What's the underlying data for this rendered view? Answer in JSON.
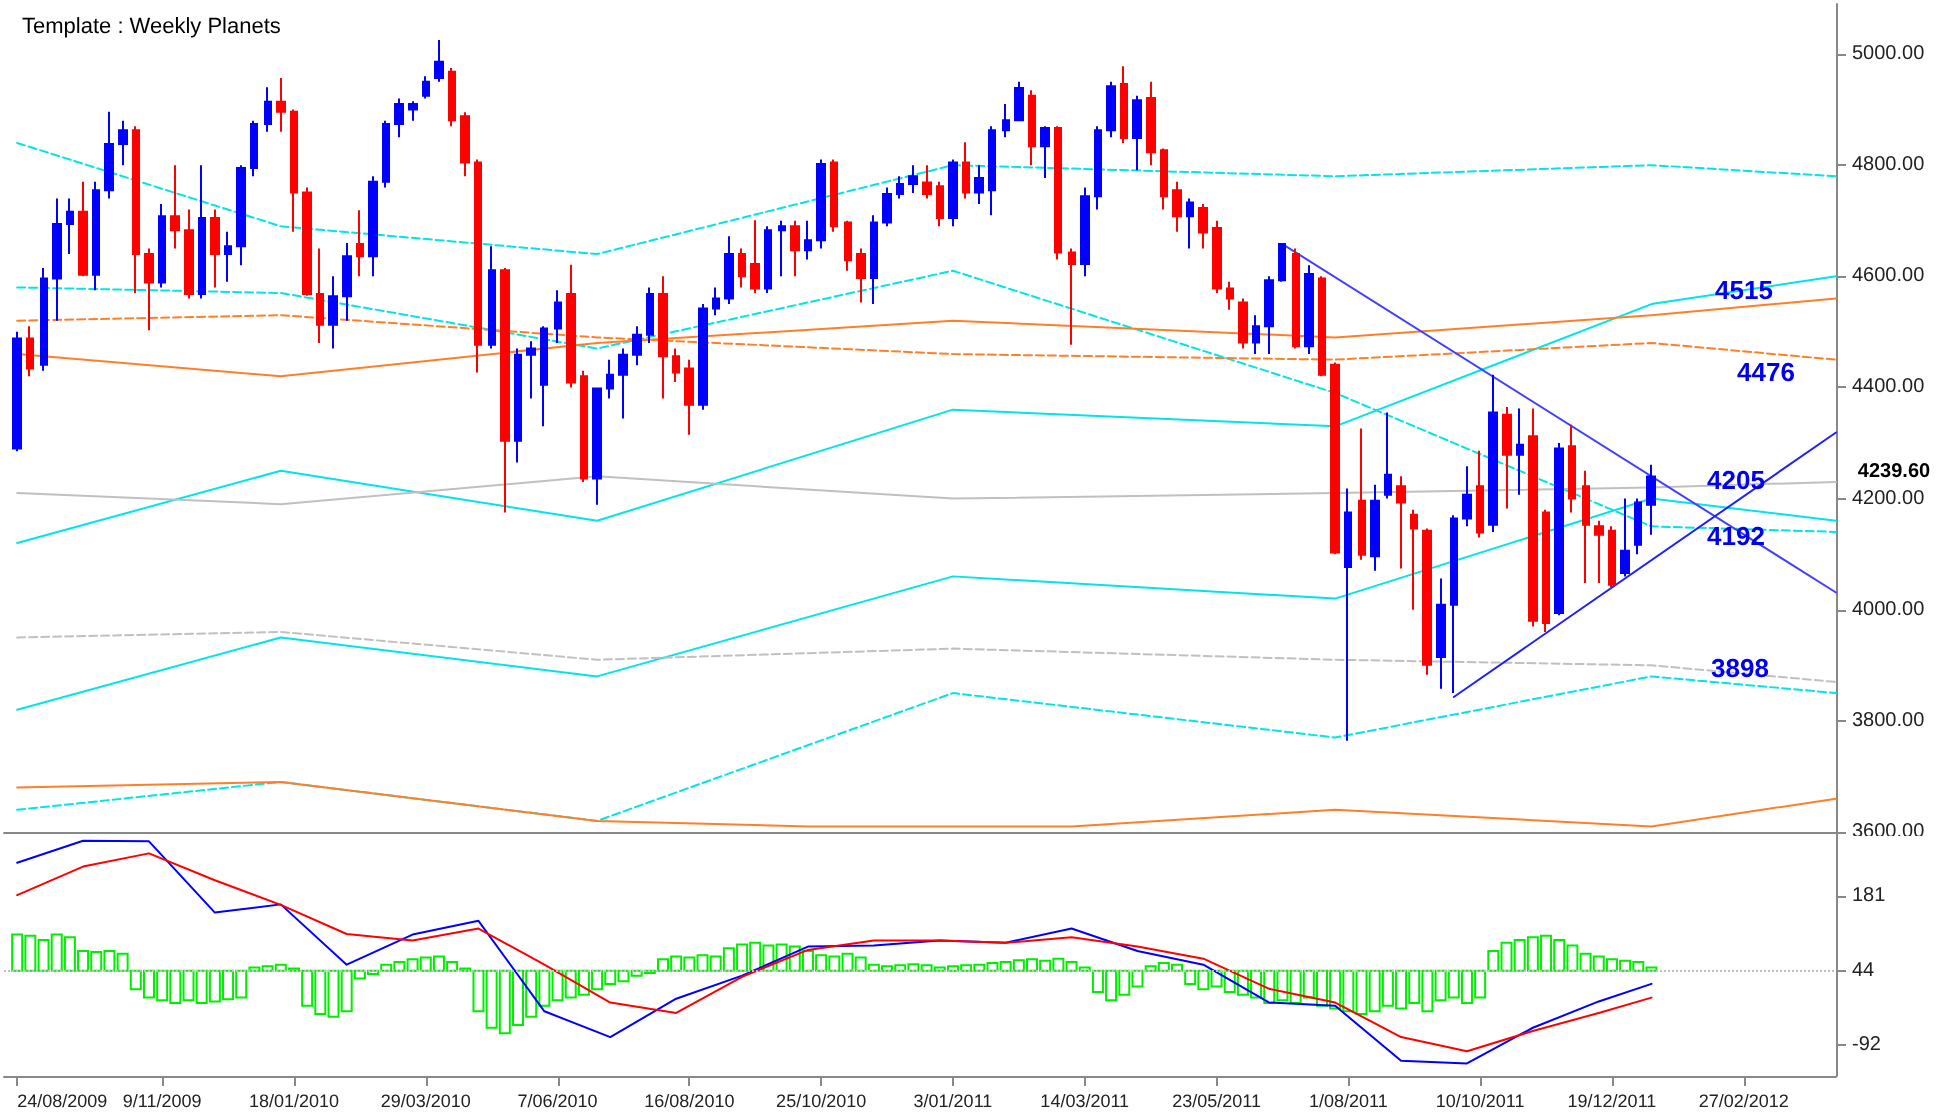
{
  "chart_data": [
    {
      "type": "candlestick",
      "title": "Template : Weekly Planets",
      "colors": [
        "#0000ff",
        "#ff0000",
        "#0000ff",
        "#0000ff",
        "#0000ff",
        "#ff0000",
        "#0000ff",
        "#0000ff",
        "#0000ff",
        "#ff0000",
        "#ff0000",
        "#0000ff",
        "#ff0000",
        "#ff0000",
        "#0000ff",
        "#ff0000",
        "#0000ff",
        "#0000ff",
        "#0000ff",
        "#0000ff",
        "#ff0000",
        "#ff0000",
        "#ff0000",
        "#ff0000",
        "#0000ff",
        "#0000ff",
        "#ff0000",
        "#0000ff",
        "#0000ff",
        "#0000ff",
        "#0000ff",
        "#0000ff",
        "#0000ff",
        "#ff0000",
        "#ff0000",
        "#ff0000",
        "#0000ff",
        "#ff0000",
        "#0000ff",
        "#0000ff",
        "#0000ff",
        "#0000ff",
        "#ff0000",
        "#ff0000",
        "#0000ff",
        "#0000ff",
        "#0000ff",
        "#0000ff",
        "#0000ff",
        "#ff0000",
        "#ff0000",
        "#ff0000",
        "#0000ff",
        "#0000ff",
        "#0000ff",
        "#ff0000",
        "#ff0000",
        "#0000ff",
        "#0000ff",
        "#ff0000",
        "#0000ff",
        "#0000ff",
        "#ff0000",
        "#ff0000",
        "#ff0000",
        "#0000ff",
        "#0000ff",
        "#0000ff",
        "#0000ff",
        "#ff0000",
        "#ff0000",
        "#0000ff",
        "#ff0000",
        "#0000ff",
        "#0000ff",
        "#0000ff",
        "#0000ff",
        "#ff0000",
        "#0000ff",
        "#ff0000",
        "#ff0000",
        "#0000ff",
        "#0000ff",
        "#0000ff",
        "#ff0000",
        "#0000ff",
        "#ff0000",
        "#ff0000",
        "#ff0000",
        "#0000ff",
        "#ff0000",
        "#ff0000",
        "#ff0000",
        "#ff0000",
        "#0000ff",
        "#0000ff",
        "#0000ff",
        "#ff0000",
        "#0000ff",
        "#ff0000",
        "#ff0000",
        "#0000ff",
        "#ff0000",
        "#0000ff",
        "#0000ff",
        "#ff0000",
        "#ff0000",
        "#ff0000",
        "#0000ff",
        "#0000ff",
        "#0000ff",
        "#ff0000",
        "#0000ff",
        "#ff0000",
        "#0000ff",
        "#ff0000",
        "#ff0000",
        "#0000ff",
        "#ff0000",
        "#ff0000",
        "#ff0000",
        "#ff0000",
        "#0000ff",
        "#0000ff",
        "#0000ff"
      ],
      "x": [
        "2009-08-24",
        "2009-08-31",
        "2009-09-07",
        "2009-09-14",
        "2009-09-21",
        "2009-09-28",
        "2009-10-05",
        "2009-10-12",
        "2009-10-19",
        "2009-10-26",
        "2009-11-02",
        "2009-11-09",
        "2009-11-16",
        "2009-11-23",
        "2009-11-30",
        "2009-12-07",
        "2009-12-14",
        "2009-12-21",
        "2009-12-28",
        "2010-01-04",
        "2010-01-11",
        "2010-01-18",
        "2010-01-25",
        "2010-02-01",
        "2010-02-08",
        "2010-02-15",
        "2010-02-22",
        "2010-03-01",
        "2010-03-08",
        "2010-03-15",
        "2010-03-22",
        "2010-03-29",
        "2010-04-05",
        "2010-04-12",
        "2010-04-19",
        "2010-04-26",
        "2010-05-03",
        "2010-05-10",
        "2010-05-17",
        "2010-05-24",
        "2010-05-31",
        "2010-06-07",
        "2010-06-14",
        "2010-06-21",
        "2010-06-28",
        "2010-07-05",
        "2010-07-12",
        "2010-07-19",
        "2010-07-26",
        "2010-08-02",
        "2010-08-09",
        "2010-08-16",
        "2010-08-23",
        "2010-08-30",
        "2010-09-06",
        "2010-09-13",
        "2010-09-20",
        "2010-09-27",
        "2010-10-04",
        "2010-10-11",
        "2010-10-18",
        "2010-10-25",
        "2010-11-01",
        "2010-11-08",
        "2010-11-15",
        "2010-11-22",
        "2010-11-29",
        "2010-12-06",
        "2010-12-13",
        "2010-12-20",
        "2010-12-27",
        "2011-01-03",
        "2011-01-10",
        "2011-01-17",
        "2011-01-24",
        "2011-01-31",
        "2011-02-07",
        "2011-02-14",
        "2011-02-21",
        "2011-02-28",
        "2011-03-07",
        "2011-03-14",
        "2011-03-21",
        "2011-03-28",
        "2011-04-04",
        "2011-04-11",
        "2011-04-18",
        "2011-04-25",
        "2011-05-02",
        "2011-05-09",
        "2011-05-16",
        "2011-05-23",
        "2011-05-30",
        "2011-06-06",
        "2011-06-13",
        "2011-06-20",
        "2011-06-27",
        "2011-07-04",
        "2011-07-11",
        "2011-07-18",
        "2011-07-25",
        "2011-08-01",
        "2011-08-08",
        "2011-08-15",
        "2011-08-22",
        "2011-08-29",
        "2011-09-05",
        "2011-09-12",
        "2011-09-19",
        "2011-09-26",
        "2011-10-03",
        "2011-10-10",
        "2011-10-17",
        "2011-10-24",
        "2011-10-31",
        "2011-11-07",
        "2011-11-14",
        "2011-11-21",
        "2011-11-28",
        "2011-12-05",
        "2011-12-12",
        "2011-12-19",
        "2011-12-26",
        "2012-01-02",
        "2012-01-09"
      ],
      "ohlc": [
        [
          4290,
          4500,
          4285,
          4488
        ],
        [
          4488,
          4510,
          4420,
          4434
        ],
        [
          4441,
          4615,
          4430,
          4596
        ],
        [
          4596,
          4740,
          4520,
          4694
        ],
        [
          4694,
          4740,
          4640,
          4716
        ],
        [
          4716,
          4770,
          4600,
          4603
        ],
        [
          4603,
          4770,
          4575,
          4755
        ],
        [
          4755,
          4896,
          4740,
          4838
        ],
        [
          4838,
          4880,
          4800,
          4863
        ],
        [
          4863,
          4870,
          4570,
          4640
        ],
        [
          4640,
          4650,
          4503,
          4589
        ],
        [
          4589,
          4730,
          4580,
          4708
        ],
        [
          4708,
          4800,
          4650,
          4683
        ],
        [
          4683,
          4720,
          4560,
          4568
        ],
        [
          4568,
          4800,
          4560,
          4705
        ],
        [
          4705,
          4720,
          4580,
          4640
        ],
        [
          4640,
          4680,
          4590,
          4654
        ],
        [
          4654,
          4800,
          4620,
          4795
        ],
        [
          4795,
          4880,
          4780,
          4874
        ],
        [
          4874,
          4940,
          4860,
          4914
        ],
        [
          4914,
          4957,
          4860,
          4896
        ],
        [
          4896,
          4900,
          4680,
          4751
        ],
        [
          4751,
          4760,
          4565,
          4568
        ],
        [
          4568,
          4650,
          4480,
          4513
        ],
        [
          4513,
          4600,
          4470,
          4564
        ],
        [
          4564,
          4660,
          4520,
          4636
        ],
        [
          4658,
          4719,
          4600,
          4636
        ],
        [
          4636,
          4780,
          4600,
          4770
        ],
        [
          4770,
          4880,
          4760,
          4874
        ],
        [
          4874,
          4920,
          4850,
          4910
        ],
        [
          4900,
          4915,
          4880,
          4910
        ],
        [
          4925,
          4960,
          4920,
          4950
        ],
        [
          4957,
          5025,
          4950,
          4986
        ],
        [
          4968,
          4975,
          4870,
          4881
        ],
        [
          4888,
          4895,
          4780,
          4805
        ],
        [
          4805,
          4810,
          4427,
          4477
        ],
        [
          4477,
          4654,
          4470,
          4611
        ],
        [
          4611,
          4615,
          4175,
          4304
        ],
        [
          4304,
          4470,
          4265,
          4459
        ],
        [
          4459,
          4483,
          4380,
          4470
        ],
        [
          4405,
          4510,
          4330,
          4506
        ],
        [
          4506,
          4575,
          4480,
          4553
        ],
        [
          4568,
          4621,
          4400,
          4409
        ],
        [
          4420,
          4430,
          4230,
          4236
        ],
        [
          4236,
          4400,
          4189,
          4398
        ],
        [
          4398,
          4450,
          4380,
          4423
        ],
        [
          4423,
          4470,
          4344,
          4459
        ],
        [
          4459,
          4510,
          4440,
          4495
        ],
        [
          4495,
          4580,
          4480,
          4568
        ],
        [
          4568,
          4600,
          4380,
          4456
        ],
        [
          4456,
          4470,
          4410,
          4427
        ],
        [
          4434,
          4450,
          4315,
          4369
        ],
        [
          4369,
          4550,
          4360,
          4542
        ],
        [
          4542,
          4580,
          4530,
          4560
        ],
        [
          4560,
          4672,
          4550,
          4640
        ],
        [
          4640,
          4650,
          4580,
          4600
        ],
        [
          4622,
          4701,
          4570,
          4578
        ],
        [
          4578,
          4690,
          4570,
          4683
        ],
        [
          4683,
          4700,
          4600,
          4690
        ],
        [
          4690,
          4700,
          4600,
          4647
        ],
        [
          4647,
          4700,
          4630,
          4665
        ],
        [
          4665,
          4810,
          4650,
          4802
        ],
        [
          4805,
          4810,
          4680,
          4690
        ],
        [
          4697,
          4700,
          4610,
          4629
        ],
        [
          4640,
          4650,
          4553,
          4597
        ],
        [
          4597,
          4710,
          4550,
          4697
        ],
        [
          4697,
          4760,
          4690,
          4748
        ],
        [
          4748,
          4780,
          4740,
          4766
        ],
        [
          4766,
          4800,
          4750,
          4780
        ],
        [
          4769,
          4800,
          4740,
          4748
        ],
        [
          4762,
          4770,
          4690,
          4705
        ],
        [
          4705,
          4810,
          4690,
          4805
        ],
        [
          4805,
          4841,
          4740,
          4751
        ],
        [
          4751,
          4800,
          4730,
          4777
        ],
        [
          4755,
          4870,
          4710,
          4863
        ],
        [
          4863,
          4910,
          4850,
          4881
        ],
        [
          4881,
          4950,
          4880,
          4939
        ],
        [
          4925,
          4935,
          4800,
          4834
        ],
        [
          4834,
          4870,
          4777,
          4867
        ],
        [
          4867,
          4870,
          4630,
          4643
        ],
        [
          4643,
          4650,
          4477,
          4622
        ],
        [
          4622,
          4760,
          4600,
          4744
        ],
        [
          4744,
          4870,
          4720,
          4863
        ],
        [
          4863,
          4950,
          4850,
          4942
        ],
        [
          4946,
          4978,
          4840,
          4849
        ],
        [
          4849,
          4925,
          4791,
          4917
        ],
        [
          4921,
          4950,
          4800,
          4823
        ],
        [
          4827,
          4830,
          4720,
          4744
        ],
        [
          4755,
          4770,
          4680,
          4708
        ],
        [
          4708,
          4740,
          4650,
          4733
        ],
        [
          4723,
          4730,
          4650,
          4679
        ],
        [
          4687,
          4700,
          4570,
          4578
        ],
        [
          4578,
          4590,
          4540,
          4560
        ],
        [
          4553,
          4560,
          4470,
          4481
        ],
        [
          4481,
          4530,
          4460,
          4510
        ],
        [
          4510,
          4600,
          4460,
          4593
        ],
        [
          4593,
          4660,
          4590,
          4658
        ],
        [
          4640,
          4650,
          4470,
          4474
        ],
        [
          4474,
          4620,
          4460,
          4604
        ],
        [
          4596,
          4600,
          4420,
          4423
        ],
        [
          4441,
          4445,
          4100,
          4103
        ],
        [
          4077,
          4218,
          3764,
          4175
        ],
        [
          4196,
          4326,
          4090,
          4099
        ],
        [
          4096,
          4225,
          4070,
          4196
        ],
        [
          4207,
          4355,
          4200,
          4243
        ],
        [
          4222,
          4240,
          4074,
          4193
        ],
        [
          4171,
          4180,
          4000,
          4146
        ],
        [
          4142,
          4146,
          3883,
          3901
        ],
        [
          3915,
          4056,
          3858,
          4009
        ],
        [
          4009,
          4170,
          3850,
          4164
        ],
        [
          4164,
          4258,
          4150,
          4207
        ],
        [
          4222,
          4286,
          4130,
          4139
        ],
        [
          4153,
          4423,
          4140,
          4355
        ],
        [
          4351,
          4365,
          4182,
          4279
        ],
        [
          4279,
          4362,
          4207,
          4297
        ],
        [
          4312,
          4362,
          3970,
          3980
        ],
        [
          4175,
          4180,
          3960,
          3976
        ],
        [
          3994,
          4300,
          3990,
          4290
        ],
        [
          4294,
          4333,
          4175,
          4200
        ],
        [
          4222,
          4250,
          4048,
          4153
        ],
        [
          4150,
          4160,
          4048,
          4135
        ],
        [
          4142,
          4150,
          4040,
          4045
        ],
        [
          4066,
          4200,
          4060,
          4106
        ],
        [
          4117,
          4200,
          4100,
          4193
        ],
        [
          4189,
          4261,
          4135,
          4239.6
        ]
      ],
      "series": [
        {
          "type": "line",
          "x": [
            "2009-08-24",
            "2010-01-11",
            "2010-06-28",
            "2011-01-03",
            "2011-07-25",
            "2012-01-09",
            "2012-04-16"
          ],
          "values": [
            4120,
            4250,
            4160,
            4360,
            4330,
            4550,
            4600
          ],
          "color": "#00e5e5",
          "line_style": "solid"
        },
        {
          "type": "line",
          "x": [
            "2009-08-24",
            "2010-01-11",
            "2010-06-28",
            "2011-01-03",
            "2011-07-25",
            "2012-01-09",
            "2012-04-16"
          ],
          "values": [
            3820,
            3950,
            3880,
            4060,
            4020,
            4200,
            4160
          ],
          "color": "#00e5e5",
          "line_style": "solid"
        },
        {
          "type": "line",
          "x": [
            "2009-08-24",
            "2010-01-11",
            "2010-06-28",
            "2011-01-03",
            "2011-07-25",
            "2012-01-09",
            "2012-04-16"
          ],
          "values": [
            3640,
            3690,
            3620,
            3850,
            3770,
            3880,
            3850
          ],
          "color": "#00e5e5",
          "line_style": "dashed"
        },
        {
          "type": "line",
          "x": [
            "2009-08-24",
            "2010-01-11",
            "2010-06-28",
            "2011-01-03",
            "2011-07-25",
            "2012-01-09",
            "2012-04-16"
          ],
          "values": [
            4840,
            4690,
            4640,
            4800,
            4780,
            4800,
            4780
          ],
          "color": "#00e5e5",
          "line_style": "dashed"
        },
        {
          "type": "line",
          "x": [
            "2009-08-24",
            "2010-01-11",
            "2010-06-28",
            "2011-01-03",
            "2011-07-25",
            "2012-01-09",
            "2012-04-16"
          ],
          "values": [
            4580,
            4570,
            4470,
            4610,
            4390,
            4150,
            4140
          ],
          "color": "#00e5e5",
          "line_style": "dashed"
        },
        {
          "type": "line",
          "x": [
            "2009-08-24",
            "2010-01-11",
            "2010-06-28",
            "2011-01-03",
            "2011-07-25",
            "2012-01-09",
            "2012-04-16"
          ],
          "values": [
            4460,
            4420,
            4480,
            4520,
            4490,
            4530,
            4560
          ],
          "color": "#ff7f27",
          "line_style": "solid"
        },
        {
          "type": "line",
          "x": [
            "2009-08-24",
            "2010-01-11",
            "2010-06-28",
            "2011-01-03",
            "2011-07-25",
            "2012-01-09",
            "2012-04-16"
          ],
          "values": [
            4520,
            4530,
            4490,
            4460,
            4450,
            4480,
            4450
          ],
          "color": "#ff7f27",
          "line_style": "dashed"
        },
        {
          "type": "line",
          "x": [
            "2009-08-24",
            "2010-01-11",
            "2010-06-28",
            "2010-10-18",
            "2011-03-07",
            "2011-07-25",
            "2012-01-09",
            "2012-04-16"
          ],
          "values": [
            3680,
            3690,
            3620,
            3610,
            3610,
            3640,
            3610,
            3660
          ],
          "color": "#ff7f27",
          "line_style": "solid"
        },
        {
          "type": "line",
          "x": [
            "2009-08-24",
            "2010-01-11",
            "2010-06-28",
            "2011-01-03",
            "2011-07-25",
            "2012-01-09",
            "2012-04-16"
          ],
          "values": [
            4210,
            4190,
            4240,
            4200,
            4210,
            4220,
            4230
          ],
          "color": "#c0c0c0",
          "line_style": "solid"
        },
        {
          "type": "line",
          "x": [
            "2009-08-24",
            "2010-01-11",
            "2010-06-28",
            "2011-01-03",
            "2011-07-25",
            "2012-01-09",
            "2012-04-16"
          ],
          "values": [
            3950,
            3960,
            3910,
            3930,
            3910,
            3900,
            3870
          ],
          "color": "#c0c0c0",
          "line_style": "dashed"
        },
        {
          "type": "line",
          "x": [
            "2011-06-27",
            "2012-04-16"
          ],
          "values": [
            4658,
            4031
          ],
          "color": "#4040ff",
          "line_style": "solid"
        },
        {
          "type": "line",
          "x": [
            "2011-09-26",
            "2012-04-16"
          ],
          "values": [
            3843,
            4319
          ],
          "color": "#2020ff",
          "line_style": "solid"
        }
      ],
      "annotations": [
        "4515",
        "4476",
        "4205",
        "4192",
        "3898",
        "4239.60"
      ],
      "xlim": [
        "2009-08-17",
        "2012-04-16"
      ],
      "ylim": [
        3600,
        5090
      ],
      "yticks": [
        {
          "value": 3600,
          "label": "3600.00"
        },
        {
          "value": 3800,
          "label": "3800.00"
        },
        {
          "value": 4000,
          "label": "4000.00"
        },
        {
          "value": 4200,
          "label": "4200.00"
        },
        {
          "value": 4400,
          "label": "4400.00"
        },
        {
          "value": 4600,
          "label": "4600.00"
        },
        {
          "value": 4800,
          "label": "4800.00"
        },
        {
          "value": 5000,
          "label": "5000.00"
        }
      ],
      "tick_labels": "y"
    },
    {
      "type": "line",
      "x": [
        "2009-08-24",
        "2009-08-31",
        "2009-09-07",
        "2009-09-14",
        "2009-09-21",
        "2009-09-28",
        "2009-10-05",
        "2009-10-12",
        "2009-10-19",
        "2009-10-26",
        "2009-11-02",
        "2009-11-09",
        "2009-11-16",
        "2009-11-23",
        "2009-11-30",
        "2009-12-07",
        "2009-12-14",
        "2009-12-21",
        "2009-12-28",
        "2010-01-04",
        "2010-01-11",
        "2010-01-18",
        "2010-01-25",
        "2010-02-01",
        "2010-02-08",
        "2010-02-15",
        "2010-02-22",
        "2010-03-01",
        "2010-03-08",
        "2010-03-15",
        "2010-03-22",
        "2010-03-29",
        "2010-04-05",
        "2010-04-12",
        "2010-04-19",
        "2010-04-26",
        "2010-05-03",
        "2010-05-10",
        "2010-05-17",
        "2010-05-24",
        "2010-05-31",
        "2010-06-07",
        "2010-06-14",
        "2010-06-21",
        "2010-06-28",
        "2010-07-05",
        "2010-07-12",
        "2010-07-19",
        "2010-07-26",
        "2010-08-02",
        "2010-08-09",
        "2010-08-16",
        "2010-08-23",
        "2010-08-30",
        "2010-09-06",
        "2010-09-13",
        "2010-09-20",
        "2010-09-27",
        "2010-10-04",
        "2010-10-11",
        "2010-10-18",
        "2010-10-25",
        "2010-11-01",
        "2010-11-08",
        "2010-11-15",
        "2010-11-22",
        "2010-11-29",
        "2010-12-06",
        "2010-12-13",
        "2010-12-20",
        "2010-12-27",
        "2011-01-03",
        "2011-01-10",
        "2011-01-17",
        "2011-01-24",
        "2011-01-31",
        "2011-02-07",
        "2011-02-14",
        "2011-02-21",
        "2011-02-28",
        "2011-03-07",
        "2011-03-14",
        "2011-03-21",
        "2011-03-28",
        "2011-04-04",
        "2011-04-11",
        "2011-04-18",
        "2011-04-25",
        "2011-05-02",
        "2011-05-09",
        "2011-05-16",
        "2011-05-23",
        "2011-05-30",
        "2011-06-06",
        "2011-06-13",
        "2011-06-20",
        "2011-06-27",
        "2011-07-04",
        "2011-07-11",
        "2011-07-18",
        "2011-07-25",
        "2011-08-01",
        "2011-08-08",
        "2011-08-15",
        "2011-08-22",
        "2011-08-29",
        "2011-09-05",
        "2011-09-12",
        "2011-09-19",
        "2011-09-26",
        "2011-10-03",
        "2011-10-10",
        "2011-10-17",
        "2011-10-24",
        "2011-10-31",
        "2011-11-07",
        "2011-11-14",
        "2011-11-21",
        "2011-11-28",
        "2011-12-05",
        "2011-12-12",
        "2011-12-19",
        "2011-12-26",
        "2012-01-02",
        "2012-01-09"
      ],
      "series": [
        {
          "type": "bar",
          "color": "#00ee00",
          "base": [
            44,
            44,
            44,
            44,
            44,
            44,
            44,
            44,
            44,
            44,
            44,
            44,
            44,
            44,
            44,
            44,
            44,
            44,
            44,
            44,
            44,
            44,
            44,
            44,
            44,
            44,
            44,
            44,
            44,
            44,
            44,
            44,
            44,
            44,
            44,
            44,
            44,
            44,
            44,
            44,
            44,
            44,
            44,
            44,
            44,
            44,
            44,
            44,
            44,
            44,
            44,
            44,
            44,
            44,
            44,
            44,
            44,
            44,
            44,
            44,
            44,
            44,
            44,
            44,
            44,
            44,
            44,
            44,
            44,
            44,
            44,
            44,
            44,
            44,
            44,
            44,
            44,
            44,
            44,
            44,
            44,
            44,
            44,
            44,
            44,
            44,
            44,
            44,
            44,
            44,
            44,
            44,
            44,
            44,
            44,
            44,
            44,
            44,
            44,
            44,
            44,
            44,
            44,
            44,
            44,
            44,
            44,
            44,
            44,
            44,
            44,
            44,
            44,
            44,
            44,
            44,
            44,
            44,
            44,
            44,
            44,
            44,
            44,
            44,
            44
          ],
          "values": [
            66,
            64,
            56,
            66,
            61,
            36,
            34,
            36,
            31,
            -34,
            -49,
            -54,
            -59,
            -54,
            -59,
            -56,
            -52,
            -49,
            6,
            8,
            11,
            4,
            -64,
            -79,
            -84,
            -74,
            -14,
            -6,
            11,
            16,
            21,
            24,
            26,
            16,
            4,
            -74,
            -104,
            -114,
            -99,
            -84,
            -64,
            -54,
            -49,
            -44,
            -34,
            -24,
            -19,
            -9,
            -4,
            21,
            26,
            24,
            28,
            26,
            41,
            48,
            51,
            46,
            48,
            44,
            36,
            28,
            26,
            31,
            24,
            11,
            8,
            10,
            12,
            10,
            6,
            8,
            10,
            11,
            14,
            16,
            19,
            21,
            18,
            22,
            16,
            6,
            -39,
            -54,
            -44,
            -29,
            8,
            14,
            11,
            -24,
            -34,
            -29,
            -39,
            -44,
            -49,
            -59,
            -54,
            -59,
            -49,
            -64,
            -69,
            -74,
            -79,
            -74,
            -64,
            -69,
            -59,
            -74,
            -54,
            -49,
            -59,
            -49,
            36,
            51,
            56,
            61,
            64,
            56,
            46,
            31,
            26,
            21,
            18,
            16,
            6
          ]
        },
        {
          "type": "line",
          "color": "#0000ff",
          "x": [
            "2009-08-24",
            "2009-09-28",
            "2009-11-02",
            "2009-12-07",
            "2010-01-11",
            "2010-02-15",
            "2010-03-22",
            "2010-04-26",
            "2010-05-31",
            "2010-07-05",
            "2010-08-09",
            "2010-09-13",
            "2010-10-18",
            "2010-11-22",
            "2010-12-27",
            "2011-01-31",
            "2011-03-07",
            "2011-04-11",
            "2011-05-16",
            "2011-06-20",
            "2011-07-25",
            "2011-08-29",
            "2011-10-03",
            "2011-11-07",
            "2011-12-12",
            "2012-01-09"
          ],
          "values": [
            241,
            281,
            280,
            150,
            165,
            55,
            110,
            135,
            -30,
            -77,
            -7,
            35,
            88,
            90,
            99,
            95,
            121,
            80,
            55,
            -14,
            -20,
            -120,
            -125,
            -60,
            -12,
            20
          ]
        },
        {
          "type": "line",
          "color": "#ff0000",
          "x": [
            "2009-08-24",
            "2009-09-28",
            "2009-11-02",
            "2009-12-07",
            "2010-01-11",
            "2010-02-15",
            "2010-03-22",
            "2010-04-26",
            "2010-05-31",
            "2010-07-05",
            "2010-08-09",
            "2010-09-13",
            "2010-10-18",
            "2010-11-22",
            "2010-12-27",
            "2011-01-31",
            "2011-03-07",
            "2011-04-11",
            "2011-05-16",
            "2011-06-20",
            "2011-07-25",
            "2011-08-29",
            "2011-10-03",
            "2011-11-07",
            "2011-12-12",
            "2012-01-09"
          ],
          "values": [
            182,
            234,
            258,
            209,
            164,
            111,
            99,
            121,
            55,
            -14,
            -33,
            33,
            82,
            99,
            99,
            95,
            105,
            88,
            66,
            11,
            -14,
            -77,
            -103,
            -66,
            -33,
            -5
          ]
        }
      ],
      "ref_lines": [
        {
          "axis": "y",
          "value": 44,
          "color": "#c0c0c0",
          "line_style": "dotted"
        }
      ],
      "xlim": [
        "2009-08-17",
        "2012-04-16"
      ],
      "xticks": [
        {
          "value": "2009-08-24",
          "label": "24/08/2009"
        },
        {
          "value": "2009-11-09",
          "label": "9/11/2009"
        },
        {
          "value": "2010-01-18",
          "label": "18/01/2010"
        },
        {
          "value": "2010-03-29",
          "label": "29/03/2010"
        },
        {
          "value": "2010-06-07",
          "label": "7/06/2010"
        },
        {
          "value": "2010-08-16",
          "label": "16/08/2010"
        },
        {
          "value": "2010-10-25",
          "label": "25/10/2010"
        },
        {
          "value": "2011-01-03",
          "label": "3/01/2011"
        },
        {
          "value": "2011-03-14",
          "label": "14/03/2011"
        },
        {
          "value": "2011-05-23",
          "label": "23/05/2011"
        },
        {
          "value": "2011-08-01",
          "label": "1/08/2011"
        },
        {
          "value": "2011-10-10",
          "label": "10/10/2011"
        },
        {
          "value": "2011-12-19",
          "label": "19/12/2011"
        },
        {
          "value": "2012-02-27",
          "label": "27/02/2012"
        }
      ],
      "ylim": [
        -148,
        297
      ],
      "yticks": [
        -92,
        44,
        181
      ]
    }
  ]
}
